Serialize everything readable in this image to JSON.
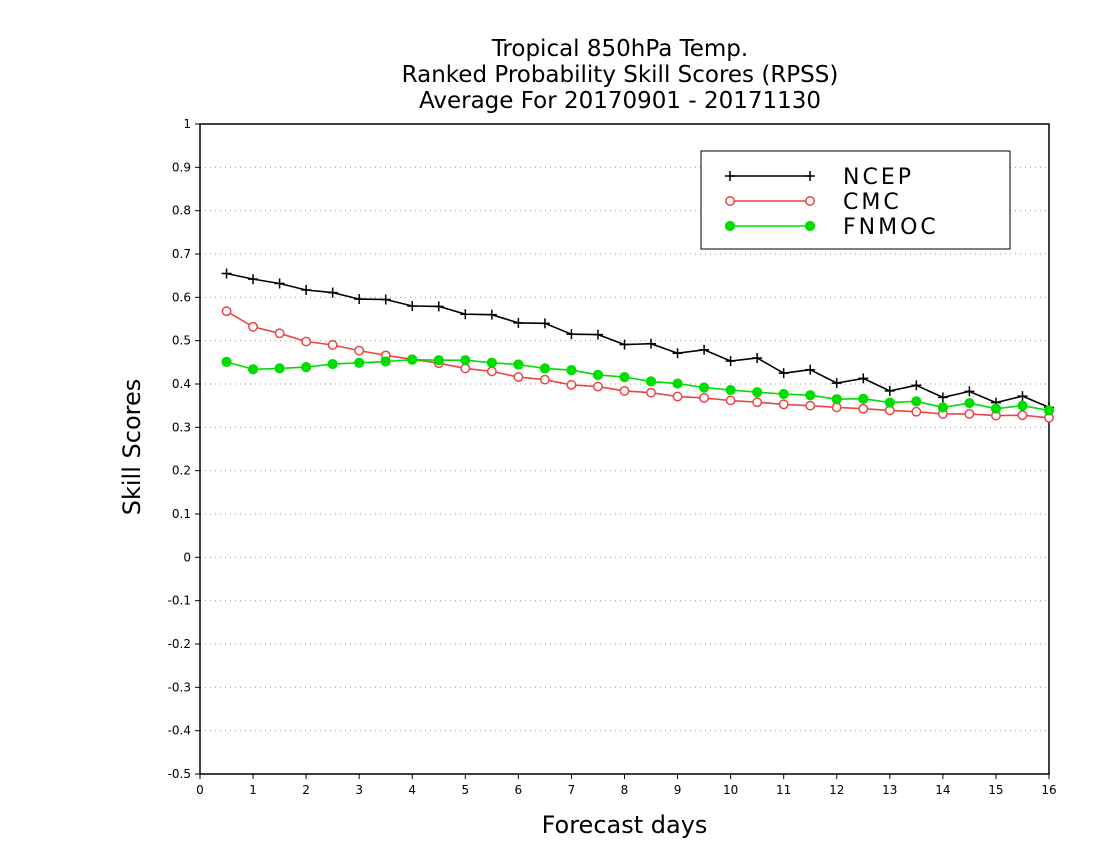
{
  "chart_data": {
    "type": "line",
    "title_lines": [
      "Tropical 850hPa Temp.",
      "Ranked Probability Skill Scores (RPSS)",
      "Average For 20170901 - 20171130"
    ],
    "xlabel": "Forecast days",
    "ylabel": "Skill Scores",
    "xlim": [
      0,
      16
    ],
    "ylim": [
      -0.5,
      1
    ],
    "x_ticks": [
      0,
      1,
      2,
      3,
      4,
      5,
      6,
      7,
      8,
      9,
      10,
      11,
      12,
      13,
      14,
      15,
      16
    ],
    "y_ticks": [
      -0.5,
      -0.4,
      -0.3,
      -0.2,
      -0.1,
      0,
      0.1,
      0.2,
      0.3,
      0.4,
      0.5,
      0.6,
      0.7,
      0.8,
      0.9,
      1
    ],
    "y_tick_labels": [
      "-0.5",
      "-0.4",
      "-0.3",
      "-0.2",
      "-0.1",
      "0",
      "0.1",
      "0.2",
      "0.3",
      "0.4",
      "0.5",
      "0.6",
      "0.7",
      "0.8",
      "0.9",
      "1"
    ],
    "grid": "horizontal dotted",
    "legend_position": "top-right",
    "x": [
      0.5,
      1.0,
      1.5,
      2.0,
      2.5,
      3.0,
      3.5,
      4.0,
      4.5,
      5.0,
      5.5,
      6.0,
      6.5,
      7.0,
      7.5,
      8.0,
      8.5,
      9.0,
      9.5,
      10.0,
      10.5,
      11.0,
      11.5,
      12.0,
      12.5,
      13.0,
      13.5,
      14.0,
      14.5,
      15.0,
      15.5,
      16.0
    ],
    "series": [
      {
        "name": "NCEP",
        "marker": "plus",
        "color": "#000000",
        "values": [
          0.655,
          0.642,
          0.632,
          0.617,
          0.611,
          0.596,
          0.595,
          0.58,
          0.579,
          0.561,
          0.56,
          0.541,
          0.54,
          0.515,
          0.514,
          0.491,
          0.493,
          0.471,
          0.479,
          0.453,
          0.46,
          0.425,
          0.433,
          0.402,
          0.413,
          0.384,
          0.397,
          0.369,
          0.383,
          0.357,
          0.372,
          0.346
        ]
      },
      {
        "name": "CMC",
        "marker": "open-circle",
        "color": "#ee4444",
        "values": [
          0.568,
          0.532,
          0.517,
          0.498,
          0.49,
          0.477,
          0.466,
          0.457,
          0.448,
          0.436,
          0.429,
          0.416,
          0.41,
          0.398,
          0.394,
          0.384,
          0.38,
          0.371,
          0.368,
          0.362,
          0.358,
          0.353,
          0.35,
          0.346,
          0.343,
          0.339,
          0.336,
          0.331,
          0.331,
          0.327,
          0.328,
          0.322
        ]
      },
      {
        "name": "FNMOC",
        "marker": "filled-circle",
        "color": "#00dd00",
        "values": [
          0.451,
          0.434,
          0.436,
          0.439,
          0.446,
          0.449,
          0.452,
          0.456,
          0.455,
          0.455,
          0.449,
          0.445,
          0.436,
          0.432,
          0.421,
          0.416,
          0.406,
          0.401,
          0.392,
          0.386,
          0.381,
          0.377,
          0.374,
          0.365,
          0.366,
          0.357,
          0.36,
          0.346,
          0.356,
          0.343,
          0.35,
          0.339
        ]
      }
    ]
  }
}
